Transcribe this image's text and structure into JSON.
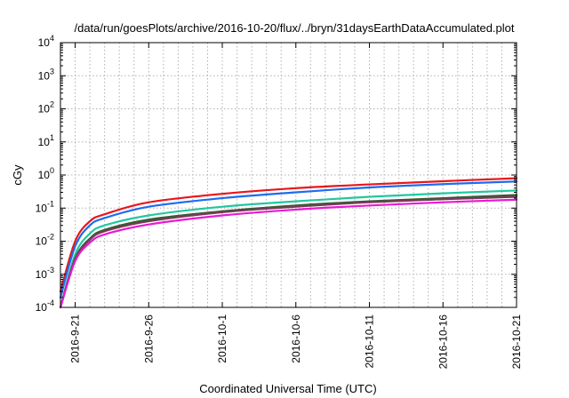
{
  "chart_data": {
    "type": "line",
    "title": "/data/run/goesPlots/archive/2016-10-20/flux/../bryn/31daysEarthDataAccumulated.plot",
    "xlabel": "Coordinated Universal Time (UTC)",
    "ylabel": "cGy",
    "x_unit": "date",
    "xlim": [
      "2016-09-20",
      "2016-10-21"
    ],
    "x_ticks": [
      "2016-9-21",
      "2016-9-26",
      "2016-10-1",
      "2016-10-6",
      "2016-10-11",
      "2016-10-16",
      "2016-10-21"
    ],
    "y_scale": "log",
    "ylim": [
      0.0001,
      10000
    ],
    "y_ticks": [
      {
        "base": "10",
        "exp": "-4"
      },
      {
        "base": "10",
        "exp": "-3"
      },
      {
        "base": "10",
        "exp": "-2"
      },
      {
        "base": "10",
        "exp": "-1"
      },
      {
        "base": "10",
        "exp": "0"
      },
      {
        "base": "10",
        "exp": "1"
      },
      {
        "base": "10",
        "exp": "2"
      },
      {
        "base": "10",
        "exp": "3"
      },
      {
        "base": "10",
        "exp": "4"
      }
    ],
    "grid": true,
    "legend": "none",
    "series": [
      {
        "color": "#e8161b",
        "x": [
          "2016-09-20",
          "2016-09-21",
          "2016-09-22",
          "2016-09-23",
          "2016-09-26",
          "2016-10-01",
          "2016-10-06",
          "2016-10-11",
          "2016-10-16",
          "2016-10-21"
        ],
        "y": [
          0.0003,
          0.01,
          0.04,
          0.065,
          0.15,
          0.27,
          0.4,
          0.52,
          0.65,
          0.8
        ]
      },
      {
        "color": "#1e6bf0",
        "x": [
          "2016-09-20",
          "2016-09-21",
          "2016-09-22",
          "2016-09-23",
          "2016-09-26",
          "2016-10-01",
          "2016-10-06",
          "2016-10-11",
          "2016-10-16",
          "2016-10-21"
        ],
        "y": [
          0.0002,
          0.007,
          0.03,
          0.05,
          0.11,
          0.2,
          0.3,
          0.42,
          0.53,
          0.64
        ]
      },
      {
        "color": "#22c7a0",
        "x": [
          "2016-09-20",
          "2016-09-21",
          "2016-09-22",
          "2016-09-23",
          "2016-09-26",
          "2016-10-01",
          "2016-10-06",
          "2016-10-11",
          "2016-10-16",
          "2016-10-21"
        ],
        "y": [
          0.0001,
          0.004,
          0.017,
          0.03,
          0.06,
          0.11,
          0.16,
          0.22,
          0.28,
          0.34
        ]
      },
      {
        "color": "#2d5e2d",
        "x": [
          "2016-09-20",
          "2016-09-21",
          "2016-09-22",
          "2016-09-23",
          "2016-09-26",
          "2016-10-01",
          "2016-10-06",
          "2016-10-11",
          "2016-10-16",
          "2016-10-21"
        ],
        "y": [
          0.0001,
          0.003,
          0.012,
          0.022,
          0.045,
          0.08,
          0.12,
          0.16,
          0.2,
          0.25
        ]
      },
      {
        "color": "#7a3a5a",
        "x": [
          "2016-09-20",
          "2016-09-21",
          "2016-09-22",
          "2016-09-23",
          "2016-09-26",
          "2016-10-01",
          "2016-10-06",
          "2016-10-11",
          "2016-10-16",
          "2016-10-21"
        ],
        "y": [
          0.0001,
          0.0028,
          0.011,
          0.02,
          0.04,
          0.075,
          0.11,
          0.15,
          0.185,
          0.22
        ]
      },
      {
        "color": "#e81ad2",
        "x": [
          "2016-09-20",
          "2016-09-21",
          "2016-09-22",
          "2016-09-23",
          "2016-09-26",
          "2016-10-01",
          "2016-10-06",
          "2016-10-11",
          "2016-10-16",
          "2016-10-21"
        ],
        "y": [
          0.0001,
          0.0025,
          0.009,
          0.016,
          0.032,
          0.06,
          0.09,
          0.12,
          0.15,
          0.18
        ]
      }
    ]
  }
}
